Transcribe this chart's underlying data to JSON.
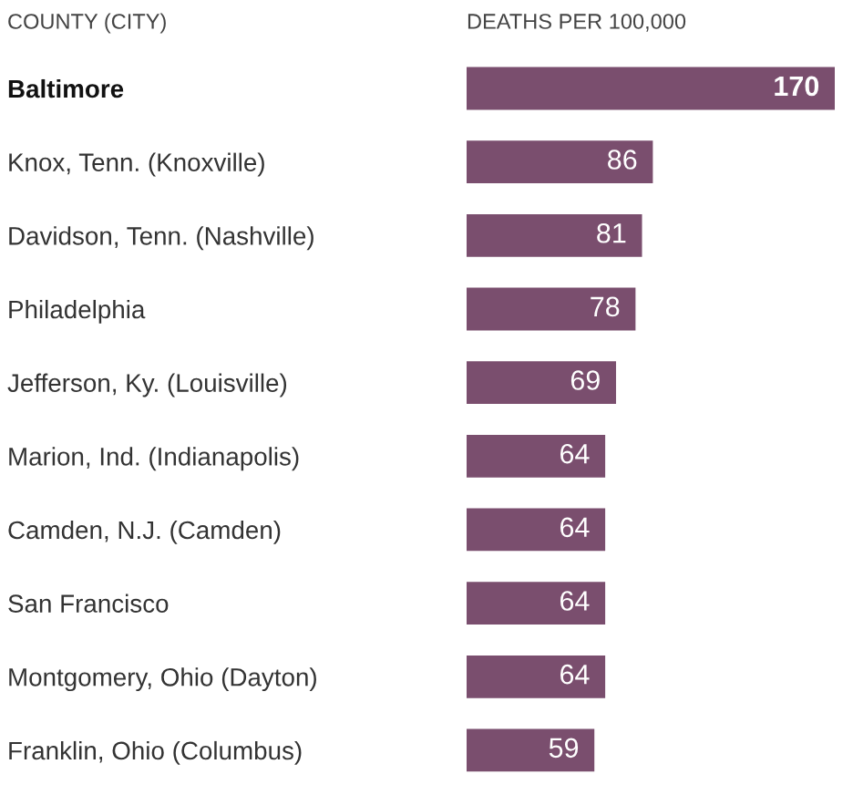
{
  "chart_data": {
    "type": "bar",
    "orientation": "horizontal",
    "ylabel": "COUNTY (CITY)",
    "xlabel": "DEATHS PER 100,000",
    "categories": [
      "Baltimore",
      "Knox, Tenn. (Knoxville)",
      "Davidson, Tenn. (Nashville)",
      "Philadelphia",
      "Jefferson, Ky. (Louisville)",
      "Marion, Ind. (Indianapolis)",
      "Camden, N.J. (Camden)",
      "San Francisco",
      "Montgomery, Ohio (Dayton)",
      "Franklin, Ohio (Columbus)"
    ],
    "values": [
      170,
      86,
      81,
      78,
      69,
      64,
      64,
      64,
      64,
      59
    ],
    "color": "#7a4e6e",
    "data_labels": true
  }
}
